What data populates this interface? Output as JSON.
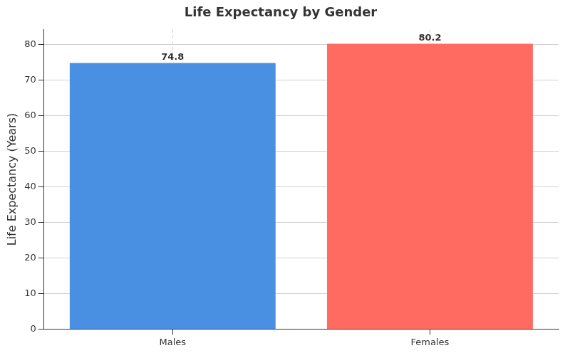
{
  "chart_data": {
    "type": "bar",
    "title": "Life Expectancy by Gender",
    "y_label": "Life Expectancy (Years)",
    "categories": [
      "Males",
      "Females"
    ],
    "values": [
      74.8,
      80.2
    ],
    "colors": [
      "#4a90e2",
      "#ff6b61"
    ],
    "ylim": [
      0,
      84.2
    ],
    "yticks": [
      0,
      10,
      20,
      30,
      40,
      50,
      60,
      70,
      80
    ],
    "grid": true,
    "data_labels": true
  }
}
